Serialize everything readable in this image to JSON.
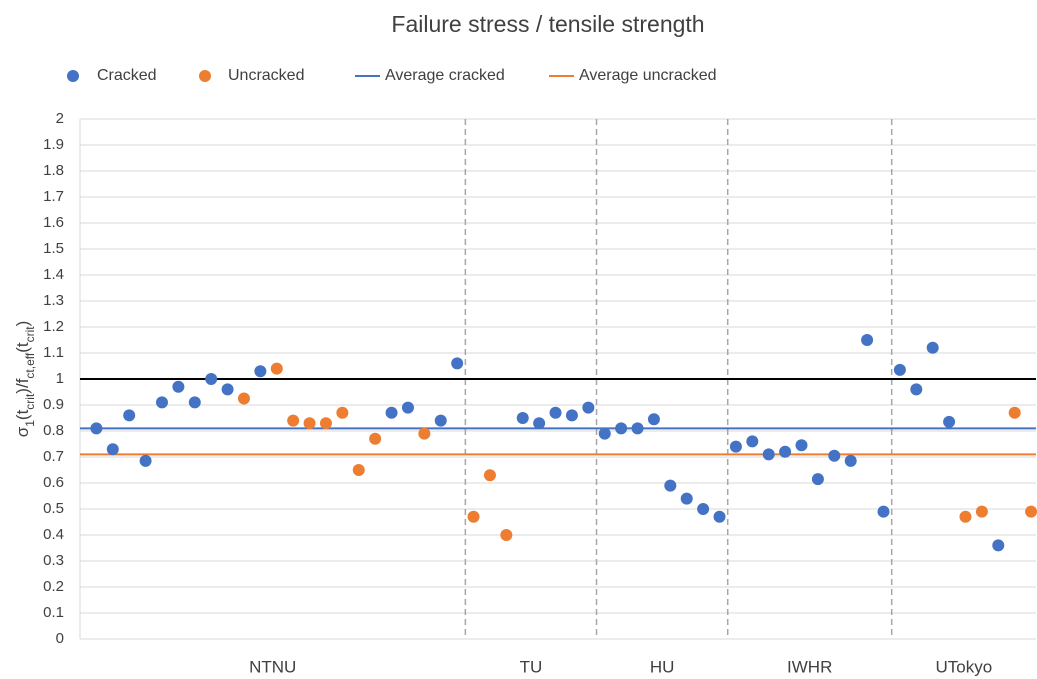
{
  "chart_data": {
    "type": "scatter",
    "title": "Failure stress / tensile strength",
    "ylabel": [
      "σ",
      "1",
      "(t",
      "crit",
      ")/f",
      "ct,eff",
      "(t",
      "crit",
      ")"
    ],
    "ylim": [
      0,
      2
    ],
    "yticks": [
      0,
      0.1,
      0.2,
      0.3,
      0.4,
      0.5,
      0.6,
      0.7,
      0.8,
      0.9,
      1,
      1.1,
      1.2,
      1.3,
      1.4,
      1.5,
      1.6,
      1.7,
      1.8,
      1.9,
      2
    ],
    "xlim": [
      0,
      58.3
    ],
    "grid": true,
    "legend": "top",
    "groups": [
      "NTNU",
      "TU",
      "HU",
      "IWHR",
      "UTokyo"
    ],
    "group_boundaries": [
      23.5,
      31.5,
      39.5,
      49.5
    ],
    "reference_line": {
      "value": 1,
      "color": "#000000"
    },
    "series": [
      {
        "name": "Cracked",
        "color": "#4472c4",
        "x": [
          1,
          2,
          3,
          4,
          5,
          6,
          7,
          8,
          9,
          11,
          19,
          20,
          22,
          23,
          27,
          28,
          29,
          30,
          31,
          32,
          33,
          34,
          35,
          36,
          37,
          38,
          39,
          40,
          41,
          42,
          43,
          44,
          45,
          46,
          47,
          48,
          49,
          50,
          51,
          52,
          53,
          56
        ],
        "values": [
          0.81,
          0.73,
          0.86,
          0.685,
          0.91,
          0.97,
          0.91,
          1.0,
          0.96,
          1.03,
          0.87,
          0.89,
          0.84,
          1.06,
          0.85,
          0.83,
          0.87,
          0.86,
          0.89,
          0.79,
          0.81,
          0.81,
          0.845,
          0.59,
          0.54,
          0.5,
          0.47,
          0.74,
          0.76,
          0.71,
          0.72,
          0.745,
          0.615,
          0.705,
          0.685,
          1.15,
          0.49,
          1.035,
          0.96,
          1.12,
          0.835,
          0.36
        ]
      },
      {
        "name": "Uncracked",
        "color": "#ed7d31",
        "x": [
          10,
          12,
          13,
          14,
          15,
          16,
          17,
          18,
          21,
          24,
          25,
          26,
          54,
          55,
          57,
          58
        ],
        "values": [
          0.925,
          1.04,
          0.84,
          0.83,
          0.83,
          0.87,
          0.65,
          0.77,
          0.79,
          0.47,
          0.63,
          0.4,
          0.47,
          0.49,
          0.87,
          0.49
        ]
      }
    ],
    "average_lines": [
      {
        "name": "Average cracked",
        "color": "#4472c4",
        "value": 0.81
      },
      {
        "name": "Average uncracked",
        "color": "#ed7d31",
        "value": 0.71
      }
    ]
  }
}
